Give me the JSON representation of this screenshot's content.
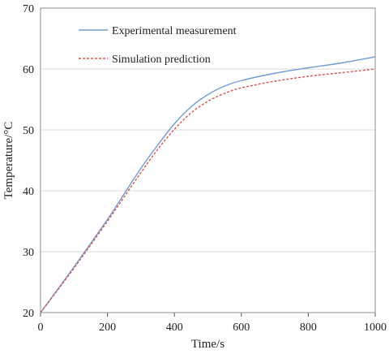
{
  "chart_data": {
    "type": "line",
    "title": "",
    "xlabel": "Time/s",
    "ylabel": "Temperature/°C",
    "xlim": [
      0,
      1000
    ],
    "ylim": [
      20,
      70
    ],
    "xticks": [
      "0",
      "200",
      "400",
      "600",
      "800",
      "1000"
    ],
    "yticks": [
      "20",
      "30",
      "40",
      "50",
      "60",
      "70"
    ],
    "grid": "horizontal",
    "legend_position": "top-left",
    "series": [
      {
        "name": "Experimental measurement",
        "color": "#6f9bd2",
        "style": "solid",
        "x": [
          0,
          100,
          200,
          250,
          300,
          350,
          400,
          450,
          500,
          550,
          600,
          700,
          800,
          900,
          1000
        ],
        "y": [
          20,
          27.5,
          35.3,
          39.5,
          43.7,
          47.5,
          51.0,
          53.8,
          55.8,
          57.2,
          58.1,
          59.3,
          60.2,
          61.0,
          62.0
        ]
      },
      {
        "name": "Simulation prediction",
        "color": "#d9534f",
        "style": "dashed",
        "x": [
          0,
          100,
          200,
          250,
          300,
          350,
          400,
          450,
          500,
          550,
          600,
          700,
          800,
          900,
          1000
        ],
        "y": [
          20,
          27.3,
          35.0,
          39.0,
          43.0,
          46.8,
          50.1,
          52.8,
          54.7,
          56.0,
          56.9,
          58.0,
          58.8,
          59.4,
          60.0
        ]
      }
    ]
  }
}
